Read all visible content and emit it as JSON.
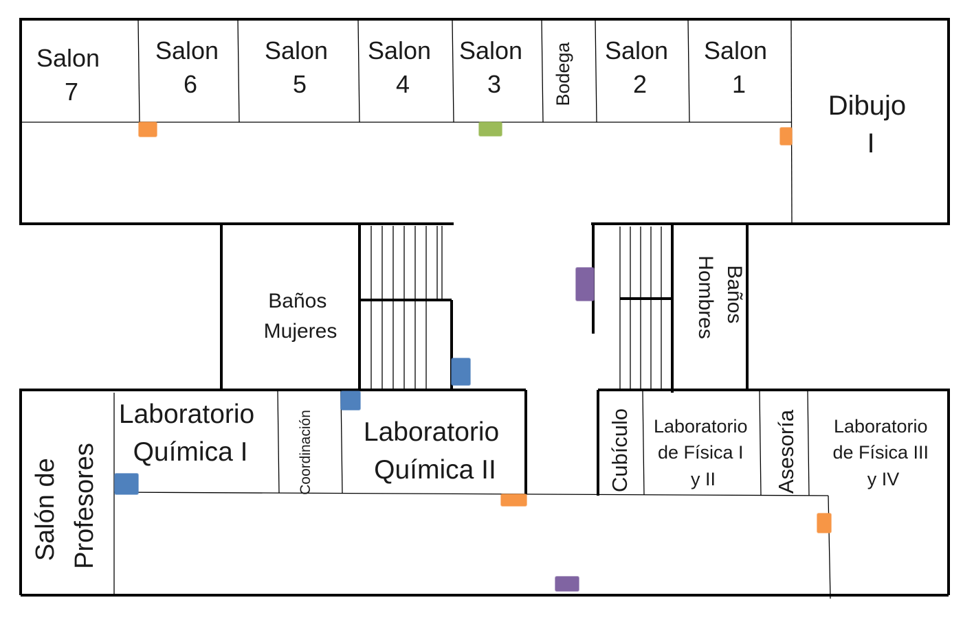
{
  "plan": {
    "rooms": {
      "salon7": [
        "Salon",
        "7"
      ],
      "salon6": [
        "Salon",
        "6"
      ],
      "salon5": [
        "Salon",
        "5"
      ],
      "salon4": [
        "Salon",
        "4"
      ],
      "salon3": [
        "Salon",
        "3"
      ],
      "bodega": "Bodega",
      "salon2": [
        "Salon",
        "2"
      ],
      "salon1": [
        "Salon",
        "1"
      ],
      "dibujo": [
        "Dibujo",
        "I"
      ],
      "banos_mujeres": [
        "Baños",
        "Mujeres"
      ],
      "banos_hombres": [
        "Baños",
        "Hombres"
      ],
      "salon_profesores": [
        "Salón de",
        "Profesores"
      ],
      "lab_quimica_1": [
        "Laboratorio",
        "Química I"
      ],
      "coordinacion": "Coordinación",
      "lab_quimica_2": [
        "Laboratorio",
        "Química II"
      ],
      "cubiculo": "Cubículo",
      "lab_fisica_1_2": [
        "Laboratorio",
        "de Física I",
        "y II"
      ],
      "asesoria": "Asesoría",
      "lab_fisica_3_4": [
        "Laboratorio",
        "de Física III",
        "y IV"
      ]
    },
    "marker_colors": {
      "orange": "#f79646",
      "green": "#9bbb59",
      "blue": "#4f81bd",
      "purple": "#8064a2"
    }
  }
}
